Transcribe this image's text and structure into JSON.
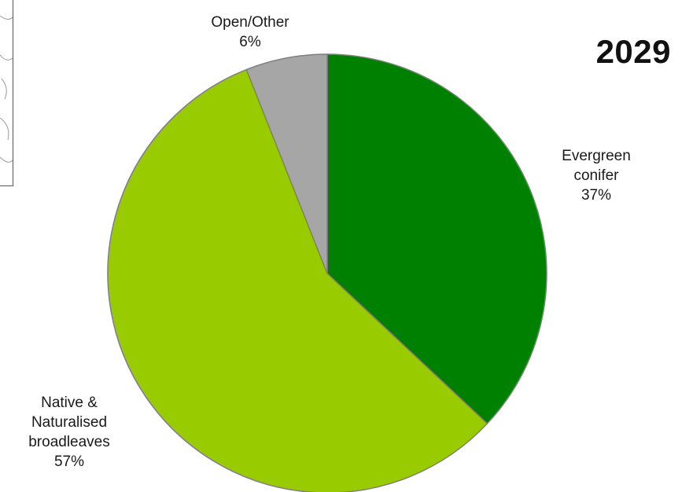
{
  "chart_data": {
    "type": "pie",
    "title": "2029",
    "slices": [
      {
        "name_lines": [
          "Evergreen",
          "conifer"
        ],
        "value": 37,
        "value_label": "37%",
        "color": "#008000"
      },
      {
        "name_lines": [
          "Native &",
          "Naturalised",
          "broadleaves"
        ],
        "value": 57,
        "value_label": "57%",
        "color": "#99cc00"
      },
      {
        "name_lines": [
          "Open/Other"
        ],
        "value": 6,
        "value_label": "6%",
        "color": "#a6a6a6"
      }
    ],
    "start_angle_deg": 0,
    "direction": "clockwise",
    "slice_border_color": "#7f7f7f",
    "legend": "none"
  }
}
